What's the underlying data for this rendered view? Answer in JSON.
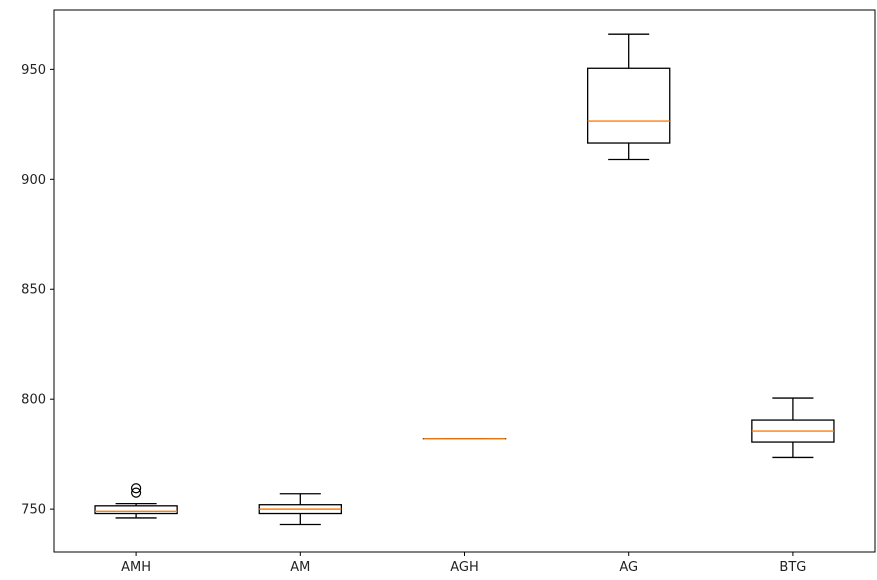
{
  "chart_data": {
    "type": "boxplot",
    "title": "",
    "xlabel": "",
    "ylabel": "",
    "ylim": [
      730.5,
      977
    ],
    "yticks": [
      750,
      800,
      850,
      900,
      950
    ],
    "categories": [
      "AMH",
      "AM",
      "AGH",
      "AG",
      "BTG"
    ],
    "boxes": [
      {
        "category": "AMH",
        "whisker_low": 746,
        "q1": 748,
        "median": 749,
        "q3": 751.5,
        "whisker_high": 752.5,
        "fliers": [
          757.5,
          759.5
        ]
      },
      {
        "category": "AM",
        "whisker_low": 743,
        "q1": 748,
        "median": 750,
        "q3": 752,
        "whisker_high": 757,
        "fliers": []
      },
      {
        "category": "AGH",
        "whisker_low": 782,
        "q1": 782,
        "median": 782,
        "q3": 782,
        "whisker_high": 782,
        "fliers": []
      },
      {
        "category": "AG",
        "whisker_low": 909,
        "q1": 916.5,
        "median": 926.5,
        "q3": 950.5,
        "whisker_high": 966,
        "fliers": []
      },
      {
        "category": "BTG",
        "whisker_low": 773.5,
        "q1": 780.5,
        "median": 785.5,
        "q3": 790.5,
        "whisker_high": 800.5,
        "fliers": []
      }
    ],
    "colors": {
      "box": "#000000",
      "median": "#ff7f0e",
      "flier": "#000000"
    },
    "grid": false,
    "legend": "none"
  }
}
